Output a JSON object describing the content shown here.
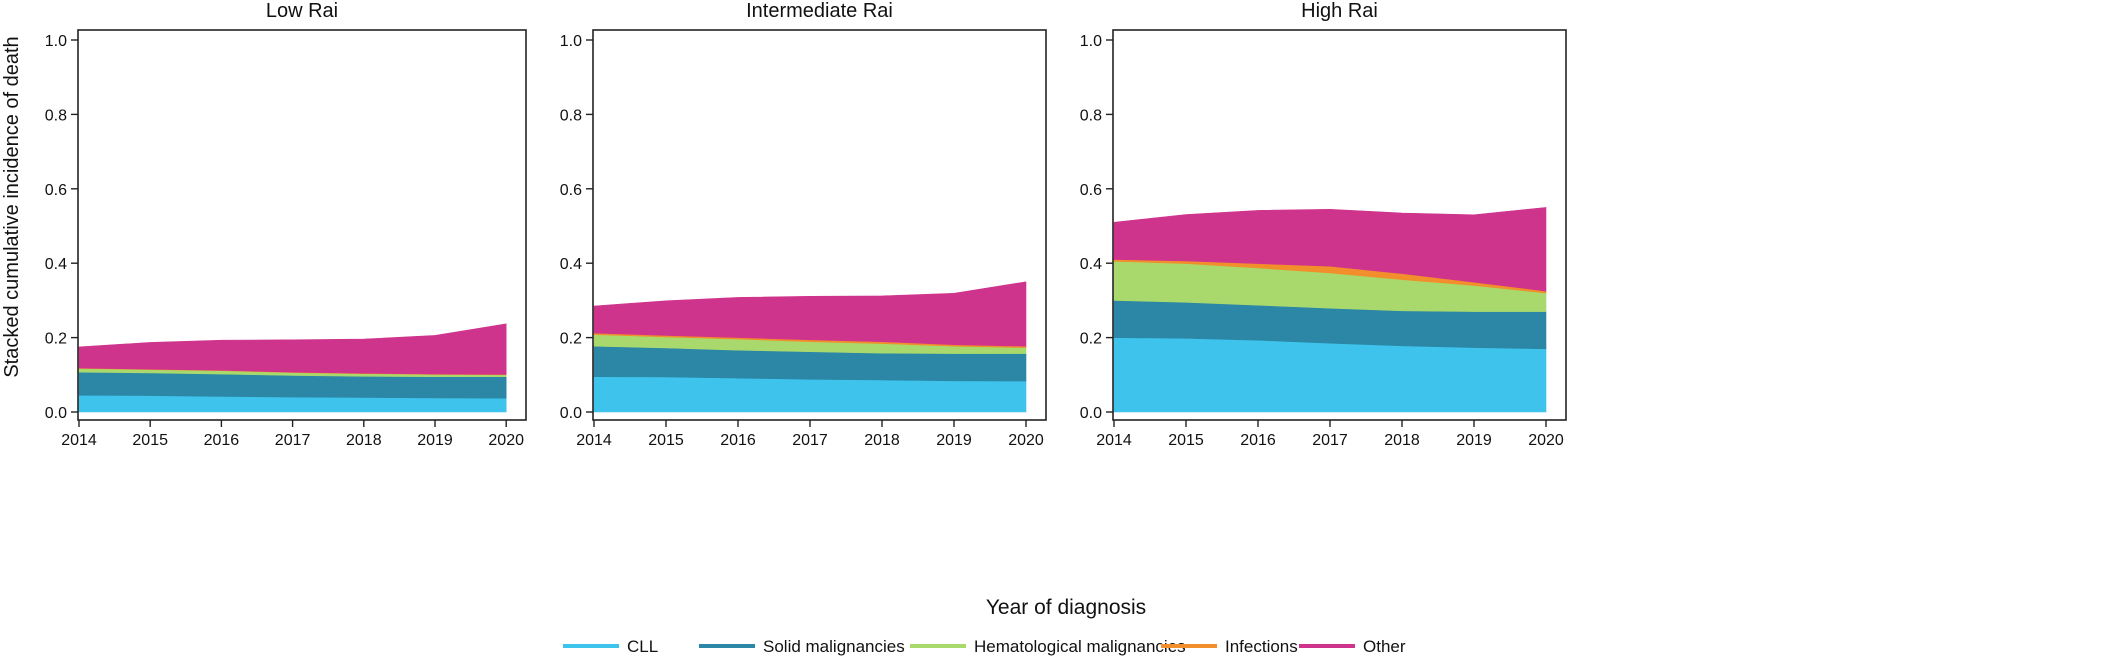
{
  "figure": {
    "ylabel": "Stacked cumulative incidence of death",
    "xlabel": "Year of diagnosis"
  },
  "legend": {
    "items": [
      {
        "label": "CLL",
        "color": "#3ec3ec"
      },
      {
        "label": "Solid malignancies",
        "color": "#2c86a5"
      },
      {
        "label": "Hematological malignancies",
        "color": "#a9d96c"
      },
      {
        "label": "Infections",
        "color": "#f28e2b"
      },
      {
        "label": "Other",
        "color": "#cf348d"
      }
    ]
  },
  "chart_data": [
    {
      "type": "area",
      "title": "Low Rai",
      "x": [
        2014,
        2015,
        2016,
        2017,
        2018,
        2019,
        2020
      ],
      "x_ticks": [
        "2014",
        "2015",
        "2016",
        "2017",
        "2018",
        "2019",
        "2020"
      ],
      "xlim": [
        2014,
        2020.25
      ],
      "ylim": [
        0,
        1
      ],
      "y_ticks": [
        "0.0",
        "0.2",
        "0.4",
        "0.6",
        "0.8",
        "1.0"
      ],
      "stacked": true,
      "series": [
        {
          "name": "CLL",
          "color": "#3ec3ec",
          "values": [
            0.045,
            0.044,
            0.042,
            0.04,
            0.039,
            0.038,
            0.037
          ]
        },
        {
          "name": "Solid malignancies",
          "color": "#2c86a5",
          "values": [
            0.062,
            0.061,
            0.06,
            0.058,
            0.057,
            0.057,
            0.058
          ]
        },
        {
          "name": "Hematological malignancies",
          "color": "#a9d96c",
          "values": [
            0.01,
            0.009,
            0.009,
            0.008,
            0.007,
            0.006,
            0.005
          ]
        },
        {
          "name": "Infections",
          "color": "#f28e2b",
          "values": [
            0.001,
            0.001,
            0.001,
            0.001,
            0.001,
            0.001,
            0.001
          ]
        },
        {
          "name": "Other",
          "color": "#cf348d",
          "values": [
            0.057,
            0.072,
            0.081,
            0.087,
            0.092,
            0.104,
            0.136
          ]
        }
      ]
    },
    {
      "type": "area",
      "title": "Intermediate Rai",
      "x": [
        2014,
        2015,
        2016,
        2017,
        2018,
        2019,
        2020
      ],
      "x_ticks": [
        "2014",
        "2015",
        "2016",
        "2017",
        "2018",
        "2019",
        "2020"
      ],
      "xlim": [
        2014,
        2020.25
      ],
      "ylim": [
        0,
        1
      ],
      "y_ticks": [
        "0.0",
        "0.2",
        "0.4",
        "0.6",
        "0.8",
        "1.0"
      ],
      "stacked": true,
      "series": [
        {
          "name": "CLL",
          "color": "#3ec3ec",
          "values": [
            0.095,
            0.094,
            0.091,
            0.088,
            0.086,
            0.084,
            0.083
          ]
        },
        {
          "name": "Solid malignancies",
          "color": "#2c86a5",
          "values": [
            0.082,
            0.078,
            0.075,
            0.074,
            0.072,
            0.073,
            0.074
          ]
        },
        {
          "name": "Hematological malignancies",
          "color": "#a9d96c",
          "values": [
            0.031,
            0.03,
            0.03,
            0.027,
            0.026,
            0.02,
            0.016
          ]
        },
        {
          "name": "Infections",
          "color": "#f28e2b",
          "values": [
            0.004,
            0.004,
            0.004,
            0.005,
            0.005,
            0.004,
            0.004
          ]
        },
        {
          "name": "Other",
          "color": "#cf348d",
          "values": [
            0.073,
            0.093,
            0.108,
            0.117,
            0.123,
            0.138,
            0.173
          ]
        }
      ]
    },
    {
      "type": "area",
      "title": "High Rai",
      "x": [
        2014,
        2015,
        2016,
        2017,
        2018,
        2019,
        2020
      ],
      "x_ticks": [
        "2014",
        "2015",
        "2016",
        "2017",
        "2018",
        "2019",
        "2020"
      ],
      "xlim": [
        2014,
        2020.25
      ],
      "ylim": [
        0,
        1
      ],
      "y_ticks": [
        "0.0",
        "0.2",
        "0.4",
        "0.6",
        "0.8",
        "1.0"
      ],
      "stacked": true,
      "series": [
        {
          "name": "CLL",
          "color": "#3ec3ec",
          "values": [
            0.2,
            0.198,
            0.193,
            0.185,
            0.178,
            0.173,
            0.17
          ]
        },
        {
          "name": "Solid malignancies",
          "color": "#2c86a5",
          "values": [
            0.1,
            0.097,
            0.094,
            0.094,
            0.094,
            0.097,
            0.1
          ]
        },
        {
          "name": "Hematological malignancies",
          "color": "#a9d96c",
          "values": [
            0.105,
            0.104,
            0.1,
            0.095,
            0.084,
            0.07,
            0.05
          ]
        },
        {
          "name": "Infections",
          "color": "#f28e2b",
          "values": [
            0.005,
            0.007,
            0.012,
            0.018,
            0.016,
            0.009,
            0.005
          ]
        },
        {
          "name": "Other",
          "color": "#cf348d",
          "values": [
            0.1,
            0.125,
            0.143,
            0.153,
            0.163,
            0.181,
            0.225
          ]
        }
      ]
    }
  ]
}
